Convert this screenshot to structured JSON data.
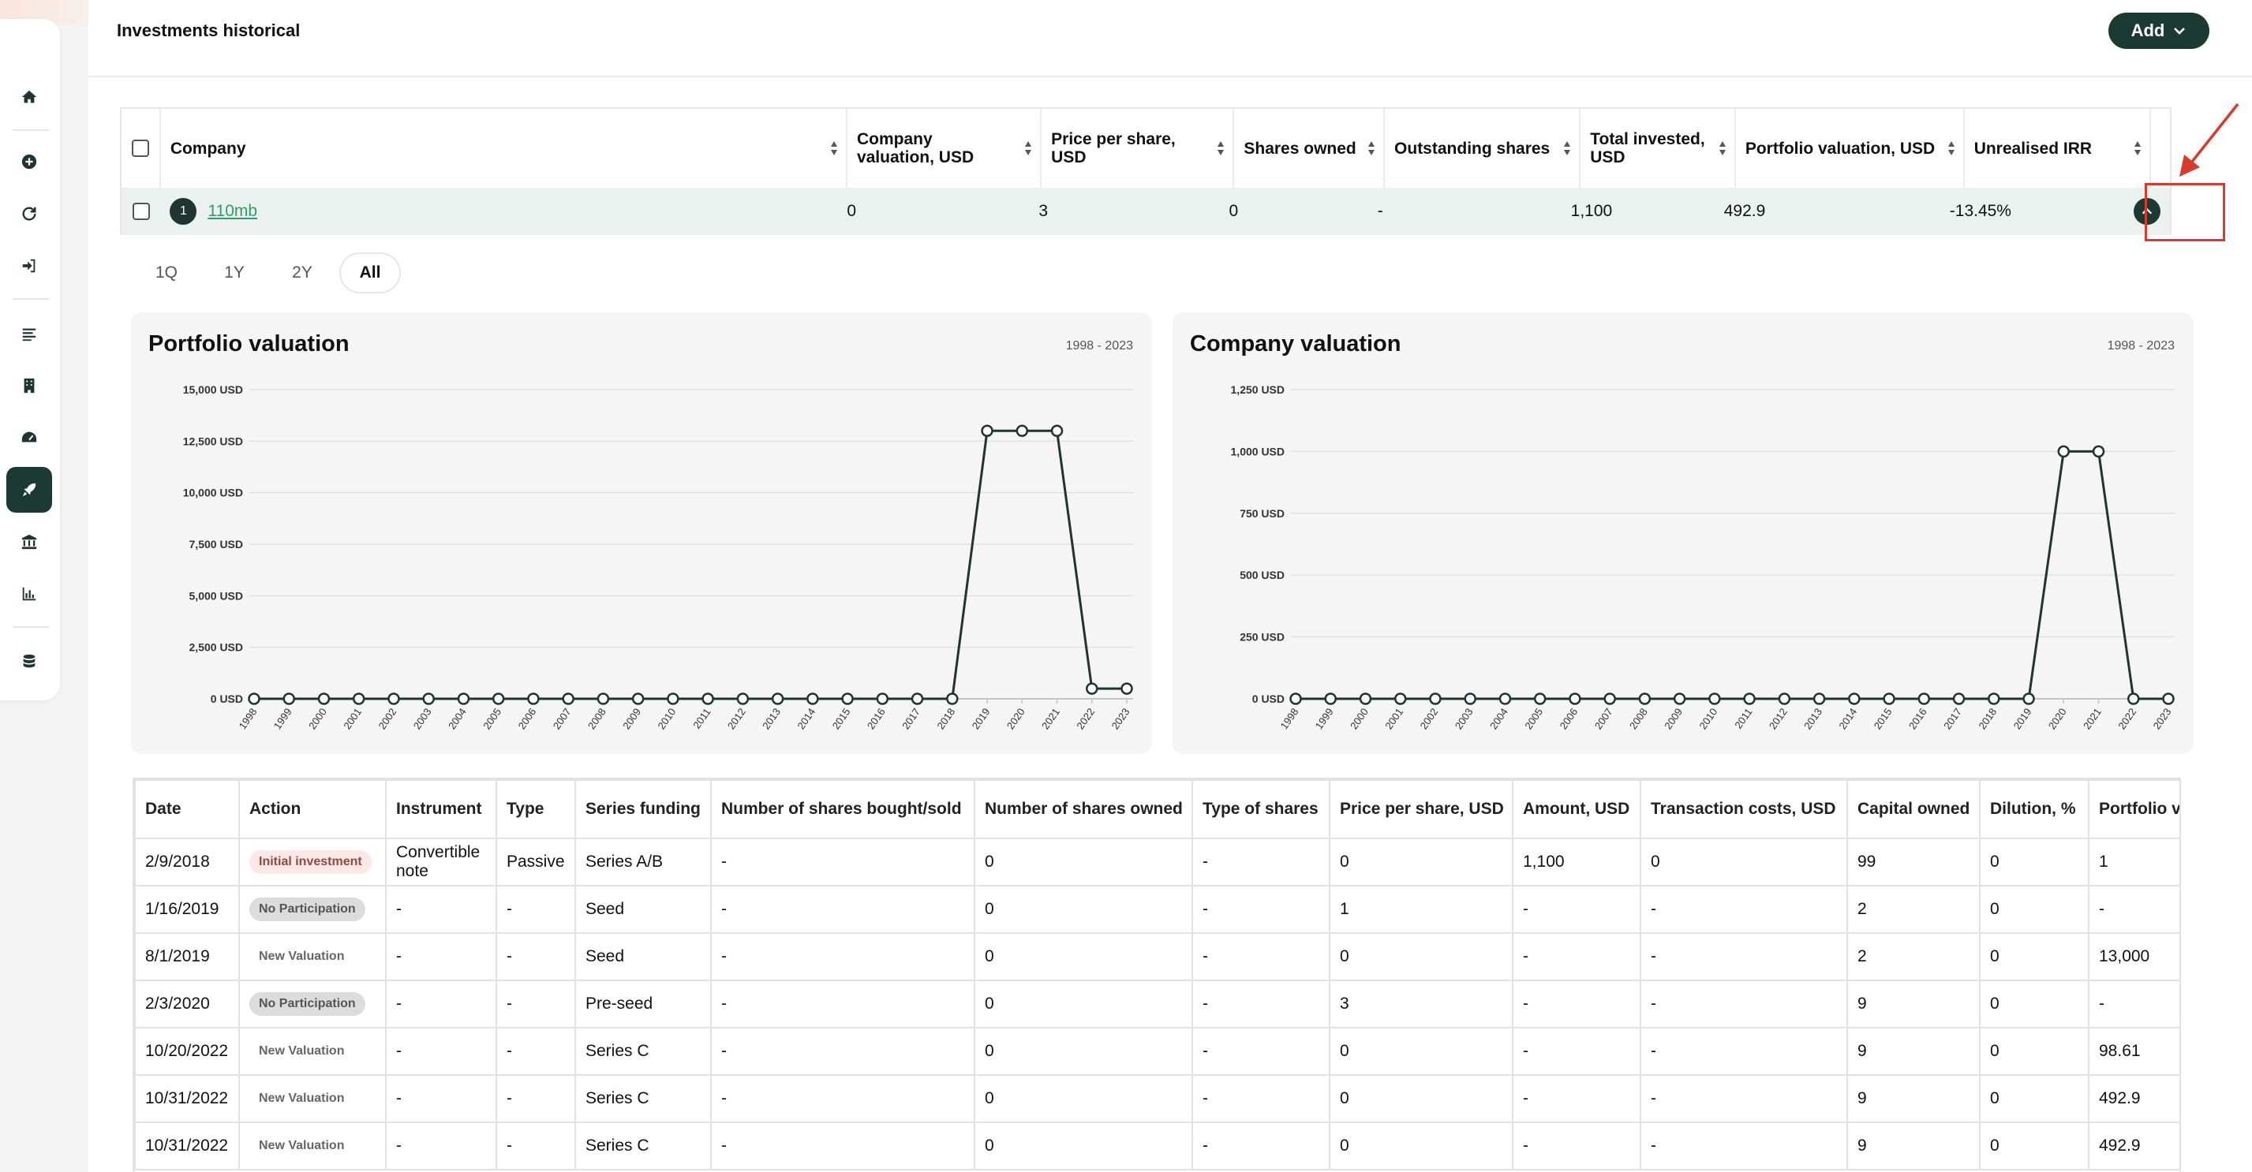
{
  "header": {
    "title": "Investments historical",
    "add_label": "Add"
  },
  "sidebar": {
    "icons": [
      "home-icon",
      "plus-circle-icon",
      "refresh-icon",
      "sign-in-icon",
      "list-icon",
      "building-icon",
      "gauge-icon",
      "rocket-icon",
      "bank-icon",
      "bar-chart-icon",
      "database-icon"
    ],
    "active": "rocket-icon"
  },
  "investments": {
    "columns": [
      "Company",
      "Company valuation, USD",
      "Price per share, USD",
      "Shares owned",
      "Outstanding shares",
      "Total invested, USD",
      "Portfolio valuation, USD",
      "Unrealised IRR"
    ],
    "row": {
      "index": "1",
      "company": "110mb",
      "company_valuation": "0",
      "price_per_share": "3",
      "shares_owned": "0",
      "outstanding_shares": "-",
      "total_invested": "1,100",
      "portfolio_valuation": "492.9",
      "unrealised_irr": "-13.45%"
    }
  },
  "range_tabs": {
    "items": [
      "1Q",
      "1Y",
      "2Y",
      "All"
    ],
    "active": "All"
  },
  "chart_data": [
    {
      "type": "line",
      "title": "Portfolio valuation",
      "range_label": "1998 - 2023",
      "x": [
        "1998",
        "1999",
        "2000",
        "2001",
        "2002",
        "2003",
        "2004",
        "2005",
        "2006",
        "2007",
        "2008",
        "2009",
        "2010",
        "2011",
        "2012",
        "2013",
        "2014",
        "2015",
        "2016",
        "2017",
        "2018",
        "2019",
        "2020",
        "2021",
        "2022",
        "2023"
      ],
      "values": [
        0,
        0,
        0,
        0,
        0,
        0,
        0,
        0,
        0,
        0,
        0,
        0,
        0,
        0,
        0,
        0,
        0,
        0,
        0,
        0,
        0,
        13000,
        13000,
        13000,
        492.9,
        492.9
      ],
      "ylim": [
        0,
        15000
      ],
      "yticks": [
        "0 USD",
        "2,500 USD",
        "5,000 USD",
        "7,500 USD",
        "10,000 USD",
        "12,500 USD",
        "15,000 USD"
      ],
      "ytick_values": [
        0,
        2500,
        5000,
        7500,
        10000,
        12500,
        15000
      ],
      "grid": true,
      "line_color": "#1f3530"
    },
    {
      "type": "line",
      "title": "Company valuation",
      "range_label": "1998 - 2023",
      "x": [
        "1998",
        "1999",
        "2000",
        "2001",
        "2002",
        "2003",
        "2004",
        "2005",
        "2006",
        "2007",
        "2008",
        "2009",
        "2010",
        "2011",
        "2012",
        "2013",
        "2014",
        "2015",
        "2016",
        "2017",
        "2018",
        "2019",
        "2020",
        "2021",
        "2022",
        "2023"
      ],
      "values": [
        0,
        0,
        0,
        0,
        0,
        0,
        0,
        0,
        0,
        0,
        0,
        0,
        0,
        0,
        0,
        0,
        0,
        0,
        0,
        0,
        0,
        0,
        1000,
        1000,
        0,
        0
      ],
      "ylim": [
        0,
        1250
      ],
      "yticks": [
        "0 USD",
        "250 USD",
        "500 USD",
        "750 USD",
        "1,000 USD",
        "1,250 USD"
      ],
      "ytick_values": [
        0,
        250,
        500,
        750,
        1000,
        1250
      ],
      "grid": true,
      "line_color": "#1f3530"
    }
  ],
  "transactions": {
    "columns": [
      "Date",
      "Action",
      "Instrument",
      "Type",
      "Series funding",
      "Number of shares bought/sold",
      "Number of shares owned",
      "Type of shares",
      "Price per share, USD",
      "Amount, USD",
      "Transaction costs, USD",
      "Capital owned",
      "Dilution, %",
      "Portfolio va"
    ],
    "rows": [
      {
        "date": "2/9/2018",
        "action": "Initial investment",
        "action_kind": "init",
        "instrument": "Convertible note",
        "type": "Passive",
        "series": "Series A/B",
        "bought_sold": "-",
        "owned": "0",
        "share_type": "-",
        "pps": "0",
        "amount": "1,100",
        "costs": "0",
        "capital": "99",
        "dilution": "0",
        "portfolio": "1"
      },
      {
        "date": "1/16/2019",
        "action": "No Participation",
        "action_kind": "nopart",
        "instrument": "-",
        "type": "-",
        "series": "Seed",
        "bought_sold": "-",
        "owned": "0",
        "share_type": "-",
        "pps": "1",
        "amount": "-",
        "costs": "-",
        "capital": "2",
        "dilution": "0",
        "portfolio": "-"
      },
      {
        "date": "8/1/2019",
        "action": "New Valuation",
        "action_kind": "newval",
        "instrument": "-",
        "type": "-",
        "series": "Seed",
        "bought_sold": "-",
        "owned": "0",
        "share_type": "-",
        "pps": "0",
        "amount": "-",
        "costs": "-",
        "capital": "2",
        "dilution": "0",
        "portfolio": "13,000"
      },
      {
        "date": "2/3/2020",
        "action": "No Participation",
        "action_kind": "nopart",
        "instrument": "-",
        "type": "-",
        "series": "Pre-seed",
        "bought_sold": "-",
        "owned": "0",
        "share_type": "-",
        "pps": "3",
        "amount": "-",
        "costs": "-",
        "capital": "9",
        "dilution": "0",
        "portfolio": "-"
      },
      {
        "date": "10/20/2022",
        "action": "New Valuation",
        "action_kind": "newval",
        "instrument": "-",
        "type": "-",
        "series": "Series C",
        "bought_sold": "-",
        "owned": "0",
        "share_type": "-",
        "pps": "0",
        "amount": "-",
        "costs": "-",
        "capital": "9",
        "dilution": "0",
        "portfolio": "98.61"
      },
      {
        "date": "10/31/2022",
        "action": "New Valuation",
        "action_kind": "newval",
        "instrument": "-",
        "type": "-",
        "series": "Series C",
        "bought_sold": "-",
        "owned": "0",
        "share_type": "-",
        "pps": "0",
        "amount": "-",
        "costs": "-",
        "capital": "9",
        "dilution": "0",
        "portfolio": "492.9"
      },
      {
        "date": "10/31/2022",
        "action": "New Valuation",
        "action_kind": "newval",
        "instrument": "-",
        "type": "-",
        "series": "Series C",
        "bought_sold": "-",
        "owned": "0",
        "share_type": "-",
        "pps": "0",
        "amount": "-",
        "costs": "-",
        "capital": "9",
        "dilution": "0",
        "portfolio": "492.9"
      }
    ]
  },
  "colors": {
    "accent": "#1b3a34",
    "link": "#2f9e6a",
    "highlight": "#d93a2b",
    "row_bg": "#eaf1ee"
  }
}
